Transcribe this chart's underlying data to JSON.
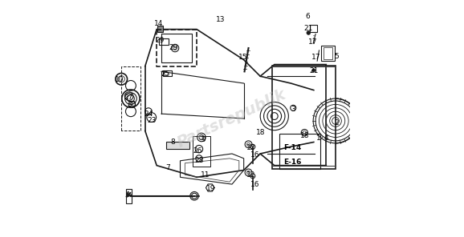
{
  "background_color": "#ffffff",
  "fig_width": 5.78,
  "fig_height": 2.96,
  "dpi": 100,
  "watermark_text": "Partsrepublik",
  "watermark_color": "#bbbbbb",
  "watermark_alpha": 0.45,
  "label_fontsize": 6.5,
  "label_color": "#000000",
  "line_color": "#1a1a1a",
  "line_color2": "#444444"
}
